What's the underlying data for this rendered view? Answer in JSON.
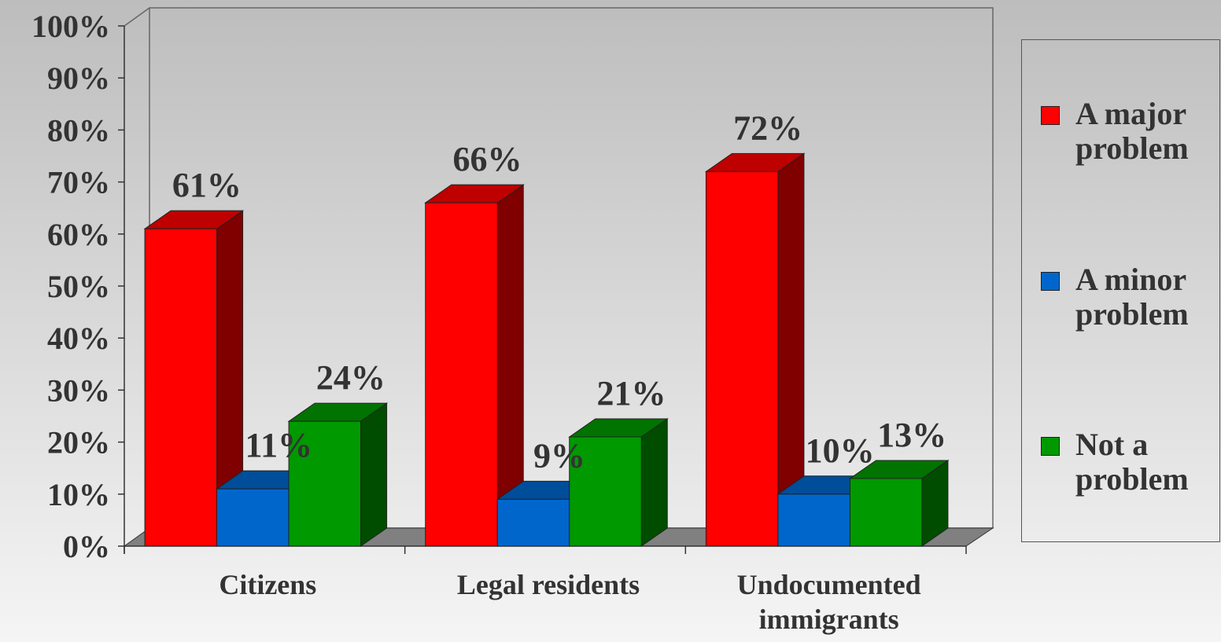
{
  "chart_data": {
    "type": "bar3d",
    "categories": [
      "Citizens",
      "Legal residents",
      "Undocumented immigrants"
    ],
    "series": [
      {
        "name": "A major problem",
        "color": "#ff0000",
        "values": [
          61,
          66,
          72
        ],
        "value_labels": [
          "61%",
          "66%",
          "72%"
        ]
      },
      {
        "name": "A minor problem",
        "color": "#0066cc",
        "values": [
          11,
          9,
          10
        ],
        "value_labels": [
          "11%",
          "9%",
          "10%"
        ]
      },
      {
        "name": "Not a problem",
        "color": "#009900",
        "values": [
          24,
          21,
          13
        ],
        "value_labels": [
          "24%",
          "21%",
          "13%"
        ]
      }
    ],
    "ylim": [
      0,
      100
    ],
    "yticks": [
      {
        "value": 0,
        "label": "0%"
      },
      {
        "value": 10,
        "label": "10%"
      },
      {
        "value": 20,
        "label": "20%"
      },
      {
        "value": 30,
        "label": "30%"
      },
      {
        "value": 40,
        "label": "40%"
      },
      {
        "value": 50,
        "label": "50%"
      },
      {
        "value": 60,
        "label": "60%"
      },
      {
        "value": 70,
        "label": "70%"
      },
      {
        "value": 80,
        "label": "80%"
      },
      {
        "value": 90,
        "label": "90%"
      },
      {
        "value": 100,
        "label": "100%"
      }
    ],
    "legend": "right"
  }
}
